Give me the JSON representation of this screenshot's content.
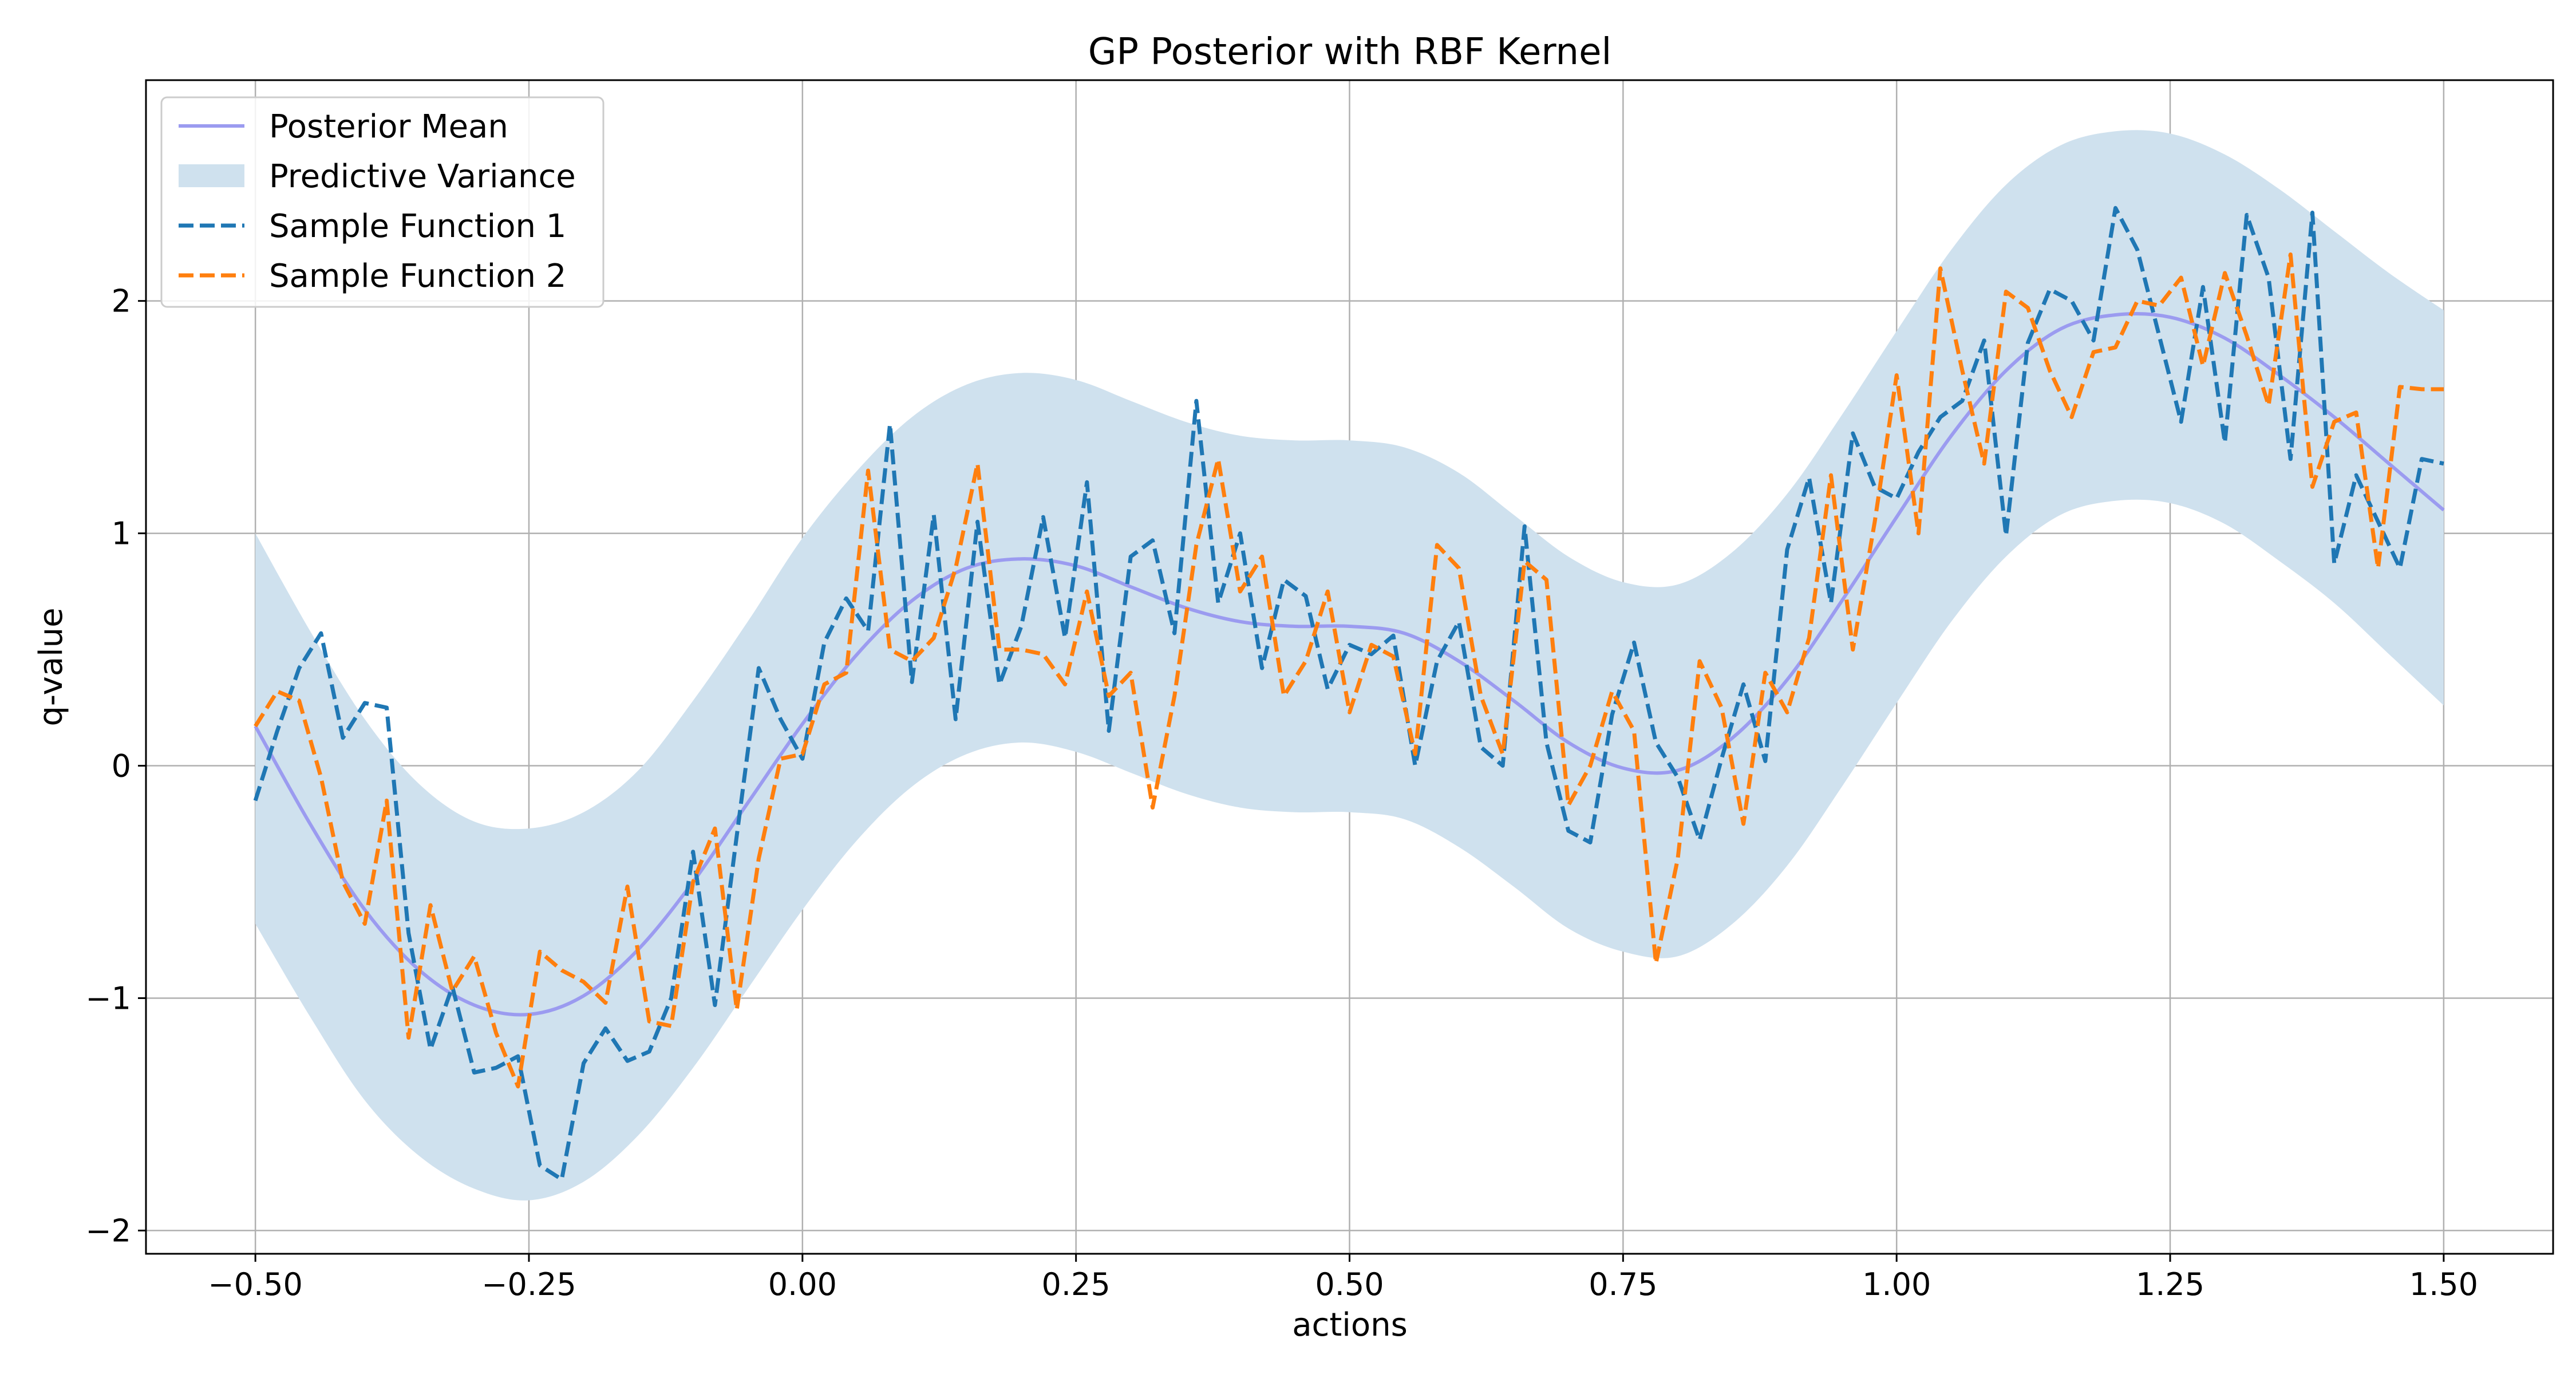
{
  "chart_data": {
    "type": "line",
    "title": "GP Posterior with RBF Kernel",
    "xlabel": "actions",
    "ylabel": "q-value",
    "xlim": [
      -0.6,
      1.6
    ],
    "ylim": [
      -2.1,
      2.95
    ],
    "xticks": [
      -0.5,
      -0.25,
      0.0,
      0.25,
      0.5,
      0.75,
      1.0,
      1.25,
      1.5
    ],
    "xtick_labels": [
      "−0.50",
      "−0.25",
      "0.00",
      "0.25",
      "0.50",
      "0.75",
      "1.00",
      "1.25",
      "1.50"
    ],
    "yticks": [
      -2,
      -1,
      0,
      1,
      2
    ],
    "ytick_labels": [
      "−2",
      "−1",
      "0",
      "1",
      "2"
    ],
    "grid": true,
    "legend": {
      "position": "top-left",
      "entries": [
        "Posterior Mean",
        "Predictive Variance",
        "Sample Function 1",
        "Sample Function 2"
      ]
    },
    "colors": {
      "mean": "#9b9bf0",
      "band": "#cfe1ee",
      "sample1": "#1f77b4",
      "sample2": "#ff7f0e",
      "grid": "#b0b0b0"
    },
    "mean": {
      "name": "Posterior Mean",
      "x": [
        -0.5,
        -0.45,
        -0.4,
        -0.35,
        -0.3,
        -0.25,
        -0.2,
        -0.15,
        -0.1,
        -0.05,
        0.0,
        0.05,
        0.1,
        0.15,
        0.2,
        0.25,
        0.3,
        0.35,
        0.4,
        0.45,
        0.5,
        0.55,
        0.6,
        0.65,
        0.7,
        0.75,
        0.8,
        0.85,
        0.9,
        0.95,
        1.0,
        1.05,
        1.1,
        1.15,
        1.2,
        1.25,
        1.3,
        1.35,
        1.4,
        1.45,
        1.5
      ],
      "y": [
        0.17,
        -0.25,
        -0.62,
        -0.88,
        -1.03,
        -1.07,
        -0.99,
        -0.79,
        -0.5,
        -0.16,
        0.18,
        0.48,
        0.71,
        0.85,
        0.89,
        0.86,
        0.77,
        0.68,
        0.62,
        0.6,
        0.6,
        0.57,
        0.45,
        0.28,
        0.1,
        -0.01,
        -0.02,
        0.12,
        0.37,
        0.71,
        1.07,
        1.42,
        1.7,
        1.88,
        1.94,
        1.93,
        1.84,
        1.68,
        1.5,
        1.3,
        1.1
      ]
    },
    "variance_band": {
      "name": "Predictive Variance",
      "x": [
        -0.5,
        -0.45,
        -0.4,
        -0.35,
        -0.3,
        -0.25,
        -0.2,
        -0.15,
        -0.1,
        -0.05,
        0.0,
        0.05,
        0.1,
        0.15,
        0.2,
        0.25,
        0.3,
        0.35,
        0.4,
        0.45,
        0.5,
        0.55,
        0.6,
        0.65,
        0.7,
        0.75,
        0.8,
        0.85,
        0.9,
        0.95,
        1.0,
        1.05,
        1.1,
        1.15,
        1.2,
        1.25,
        1.3,
        1.35,
        1.4,
        1.45,
        1.5
      ],
      "upper": [
        1.0,
        0.58,
        0.2,
        -0.08,
        -0.24,
        -0.27,
        -0.2,
        -0.02,
        0.28,
        0.62,
        0.98,
        1.27,
        1.5,
        1.64,
        1.69,
        1.66,
        1.57,
        1.48,
        1.42,
        1.4,
        1.4,
        1.37,
        1.26,
        1.08,
        0.9,
        0.79,
        0.78,
        0.92,
        1.17,
        1.51,
        1.87,
        2.22,
        2.5,
        2.67,
        2.73,
        2.72,
        2.63,
        2.48,
        2.3,
        2.12,
        1.96
      ],
      "lower": [
        -0.68,
        -1.08,
        -1.44,
        -1.68,
        -1.82,
        -1.87,
        -1.79,
        -1.59,
        -1.3,
        -0.96,
        -0.62,
        -0.32,
        -0.09,
        0.05,
        0.1,
        0.06,
        -0.03,
        -0.12,
        -0.18,
        -0.2,
        -0.2,
        -0.23,
        -0.35,
        -0.52,
        -0.7,
        -0.8,
        -0.82,
        -0.68,
        -0.43,
        -0.09,
        0.27,
        0.62,
        0.9,
        1.08,
        1.14,
        1.13,
        1.04,
        0.88,
        0.7,
        0.48,
        0.26
      ]
    },
    "series": [
      {
        "name": "Sample Function 1",
        "x": [
          -0.5,
          -0.48,
          -0.46,
          -0.44,
          -0.42,
          -0.4,
          -0.38,
          -0.36,
          -0.34,
          -0.32,
          -0.3,
          -0.28,
          -0.26,
          -0.24,
          -0.22,
          -0.2,
          -0.18,
          -0.16,
          -0.14,
          -0.12,
          -0.1,
          -0.08,
          -0.06,
          -0.04,
          -0.02,
          0.0,
          0.02,
          0.04,
          0.06,
          0.08,
          0.1,
          0.12,
          0.14,
          0.16,
          0.18,
          0.2,
          0.22,
          0.24,
          0.26,
          0.28,
          0.3,
          0.32,
          0.34,
          0.36,
          0.38,
          0.4,
          0.42,
          0.44,
          0.46,
          0.48,
          0.5,
          0.52,
          0.54,
          0.56,
          0.58,
          0.6,
          0.62,
          0.64,
          0.66,
          0.68,
          0.7,
          0.72,
          0.74,
          0.76,
          0.78,
          0.8,
          0.82,
          0.84,
          0.86,
          0.88,
          0.9,
          0.92,
          0.94,
          0.96,
          0.98,
          1.0,
          1.02,
          1.04,
          1.06,
          1.08,
          1.1,
          1.12,
          1.14,
          1.16,
          1.18,
          1.2,
          1.22,
          1.24,
          1.26,
          1.28,
          1.3,
          1.32,
          1.34,
          1.36,
          1.38,
          1.4,
          1.42,
          1.44,
          1.46,
          1.48,
          1.5
        ],
        "y": [
          -0.15,
          0.15,
          0.42,
          0.57,
          0.12,
          0.27,
          0.25,
          -0.72,
          -1.22,
          -0.95,
          -1.32,
          -1.3,
          -1.25,
          -1.72,
          -1.78,
          -1.28,
          -1.13,
          -1.27,
          -1.23,
          -1.0,
          -0.37,
          -1.03,
          -0.3,
          0.42,
          0.2,
          0.03,
          0.53,
          0.72,
          0.58,
          1.47,
          0.36,
          1.08,
          0.2,
          1.05,
          0.35,
          0.6,
          1.07,
          0.55,
          1.22,
          0.15,
          0.9,
          0.97,
          0.57,
          1.57,
          0.7,
          1.0,
          0.42,
          0.8,
          0.73,
          0.33,
          0.52,
          0.48,
          0.56,
          0.0,
          0.45,
          0.62,
          0.08,
          0.0,
          1.03,
          0.1,
          -0.28,
          -0.33,
          0.22,
          0.53,
          0.1,
          -0.05,
          -0.32,
          0.03,
          0.35,
          0.02,
          0.93,
          1.24,
          0.7,
          1.43,
          1.2,
          1.15,
          1.35,
          1.5,
          1.57,
          1.83,
          0.99,
          1.82,
          2.05,
          2.0,
          1.83,
          2.4,
          2.22,
          1.85,
          1.48,
          2.06,
          1.39,
          2.37,
          2.1,
          1.32,
          2.38,
          0.87,
          1.25,
          1.05,
          0.85,
          1.32,
          1.3
        ]
      },
      {
        "name": "Sample Function 2",
        "x": [
          -0.5,
          -0.48,
          -0.46,
          -0.44,
          -0.42,
          -0.4,
          -0.38,
          -0.36,
          -0.34,
          -0.32,
          -0.3,
          -0.28,
          -0.26,
          -0.24,
          -0.22,
          -0.2,
          -0.18,
          -0.16,
          -0.14,
          -0.12,
          -0.1,
          -0.08,
          -0.06,
          -0.04,
          -0.02,
          0.0,
          0.02,
          0.04,
          0.06,
          0.08,
          0.1,
          0.12,
          0.14,
          0.16,
          0.18,
          0.2,
          0.22,
          0.24,
          0.26,
          0.28,
          0.3,
          0.32,
          0.34,
          0.36,
          0.38,
          0.4,
          0.42,
          0.44,
          0.46,
          0.48,
          0.5,
          0.52,
          0.54,
          0.56,
          0.58,
          0.6,
          0.62,
          0.64,
          0.66,
          0.68,
          0.7,
          0.72,
          0.74,
          0.76,
          0.78,
          0.8,
          0.82,
          0.84,
          0.86,
          0.88,
          0.9,
          0.92,
          0.94,
          0.96,
          0.98,
          1.0,
          1.02,
          1.04,
          1.06,
          1.08,
          1.1,
          1.12,
          1.14,
          1.16,
          1.18,
          1.2,
          1.22,
          1.24,
          1.26,
          1.28,
          1.3,
          1.32,
          1.34,
          1.36,
          1.38,
          1.4,
          1.42,
          1.44,
          1.46,
          1.48,
          1.5
        ],
        "y": [
          0.17,
          0.32,
          0.28,
          -0.05,
          -0.5,
          -0.68,
          -0.15,
          -1.17,
          -0.6,
          -0.97,
          -0.82,
          -1.15,
          -1.38,
          -0.8,
          -0.88,
          -0.93,
          -1.02,
          -0.52,
          -1.1,
          -1.12,
          -0.5,
          -0.27,
          -1.05,
          -0.4,
          0.03,
          0.05,
          0.35,
          0.4,
          1.27,
          0.5,
          0.45,
          0.55,
          0.85,
          1.3,
          0.5,
          0.5,
          0.48,
          0.35,
          0.75,
          0.3,
          0.4,
          -0.18,
          0.3,
          0.95,
          1.32,
          0.75,
          0.9,
          0.3,
          0.45,
          0.75,
          0.23,
          0.52,
          0.47,
          0.05,
          0.95,
          0.85,
          0.3,
          0.05,
          0.88,
          0.8,
          -0.17,
          0.0,
          0.32,
          0.15,
          -0.85,
          -0.4,
          0.45,
          0.25,
          -0.25,
          0.4,
          0.23,
          0.55,
          1.25,
          0.5,
          1.05,
          1.68,
          1.0,
          2.14,
          1.7,
          1.3,
          2.04,
          1.97,
          1.7,
          1.5,
          1.78,
          1.8,
          2.0,
          1.98,
          2.1,
          1.72,
          2.12,
          1.85,
          1.55,
          2.2,
          1.2,
          1.48,
          1.52,
          0.85,
          1.63,
          1.62,
          1.62
        ]
      }
    ]
  }
}
